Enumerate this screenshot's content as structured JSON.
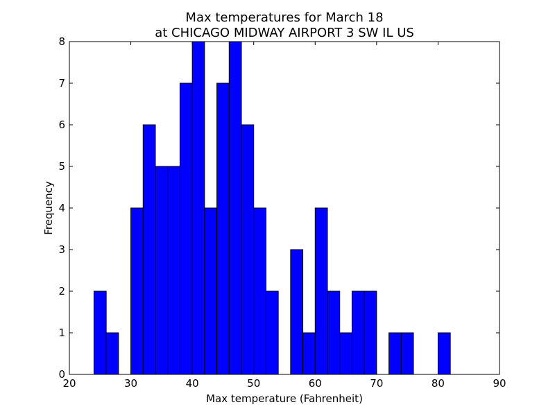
{
  "chart_data": {
    "type": "bar",
    "title": "Max temperatures for March 18",
    "subtitle": "at CHICAGO MIDWAY AIRPORT 3 SW IL US",
    "xlabel": "Max temperature (Fahrenheit)",
    "ylabel": "Frequency",
    "xlim": [
      20,
      90
    ],
    "ylim": [
      0,
      8
    ],
    "xticks": [
      "20",
      "30",
      "40",
      "50",
      "60",
      "70",
      "80",
      "90"
    ],
    "yticks": [
      "0",
      "1",
      "2",
      "3",
      "4",
      "5",
      "6",
      "7",
      "8"
    ],
    "grid": false,
    "bar_color": "#0000ff",
    "bins": [
      {
        "start": 24,
        "end": 26,
        "count": 2
      },
      {
        "start": 26,
        "end": 28,
        "count": 1
      },
      {
        "start": 28,
        "end": 30,
        "count": 0
      },
      {
        "start": 30,
        "end": 32,
        "count": 4
      },
      {
        "start": 32,
        "end": 34,
        "count": 6
      },
      {
        "start": 34,
        "end": 36,
        "count": 5
      },
      {
        "start": 36,
        "end": 38,
        "count": 5
      },
      {
        "start": 38,
        "end": 40,
        "count": 7
      },
      {
        "start": 40,
        "end": 42,
        "count": 8
      },
      {
        "start": 42,
        "end": 44,
        "count": 4
      },
      {
        "start": 44,
        "end": 46,
        "count": 7
      },
      {
        "start": 46,
        "end": 48,
        "count": 8
      },
      {
        "start": 48,
        "end": 50,
        "count": 6
      },
      {
        "start": 50,
        "end": 52,
        "count": 4
      },
      {
        "start": 52,
        "end": 54,
        "count": 2
      },
      {
        "start": 54,
        "end": 56,
        "count": 0
      },
      {
        "start": 56,
        "end": 58,
        "count": 3
      },
      {
        "start": 58,
        "end": 60,
        "count": 1
      },
      {
        "start": 60,
        "end": 62,
        "count": 4
      },
      {
        "start": 62,
        "end": 64,
        "count": 2
      },
      {
        "start": 64,
        "end": 66,
        "count": 1
      },
      {
        "start": 66,
        "end": 68,
        "count": 2
      },
      {
        "start": 68,
        "end": 70,
        "count": 2
      },
      {
        "start": 70,
        "end": 72,
        "count": 0
      },
      {
        "start": 72,
        "end": 74,
        "count": 1
      },
      {
        "start": 74,
        "end": 76,
        "count": 1
      },
      {
        "start": 76,
        "end": 78,
        "count": 0
      },
      {
        "start": 78,
        "end": 80,
        "count": 0
      },
      {
        "start": 80,
        "end": 82,
        "count": 1
      }
    ]
  }
}
